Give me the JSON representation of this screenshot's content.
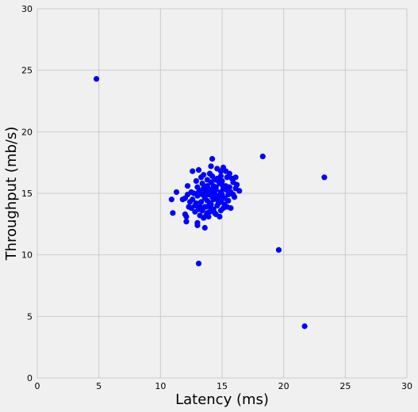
{
  "chart_data": {
    "type": "scatter",
    "title": "",
    "xlabel": "Latency (ms)",
    "ylabel": "Throughput (mb/s)",
    "xlim": [
      0,
      30
    ],
    "ylim": [
      0,
      30
    ],
    "xticks": [
      0,
      5,
      10,
      15,
      20,
      25,
      30
    ],
    "yticks": [
      0,
      5,
      10,
      15,
      20,
      25,
      30
    ],
    "grid": true,
    "legend": "none",
    "background_color": "#f0f0f0",
    "grid_color": "#cbcbcb",
    "marker_color": "#0000ff",
    "series": [
      {
        "points": [
          [
            4.8,
            24.3
          ],
          [
            18.3,
            18.0
          ],
          [
            23.3,
            16.3
          ],
          [
            19.6,
            10.4
          ],
          [
            21.7,
            4.2
          ],
          [
            13.1,
            9.3
          ],
          [
            13.6,
            12.2
          ],
          [
            13.0,
            12.6
          ],
          [
            13.0,
            12.4
          ],
          [
            12.1,
            12.7
          ],
          [
            12.0,
            13.3
          ],
          [
            12.1,
            13.1
          ],
          [
            11.0,
            13.4
          ],
          [
            10.9,
            14.5
          ],
          [
            11.3,
            15.1
          ],
          [
            11.8,
            14.5
          ],
          [
            12.0,
            14.6
          ],
          [
            12.2,
            15.6
          ],
          [
            12.6,
            16.8
          ],
          [
            13.1,
            16.9
          ],
          [
            14.2,
            17.8
          ],
          [
            14.1,
            17.2
          ],
          [
            15.1,
            17.1
          ],
          [
            16.1,
            16.3
          ],
          [
            16.4,
            15.2
          ],
          [
            16.0,
            14.7
          ],
          [
            15.9,
            15.9
          ],
          [
            15.6,
            16.6
          ],
          [
            15.3,
            16.8
          ],
          [
            14.9,
            16.4
          ],
          [
            12.5,
            15.1
          ],
          [
            12.9,
            14.2
          ],
          [
            13.2,
            13.2
          ],
          [
            13.5,
            13.0
          ],
          [
            13.8,
            13.4
          ],
          [
            14.1,
            13.8
          ],
          [
            14.5,
            13.3
          ],
          [
            14.9,
            13.6
          ],
          [
            15.2,
            14.1
          ],
          [
            15.5,
            14.4
          ],
          [
            15.7,
            15.1
          ],
          [
            15.3,
            15.6
          ],
          [
            15.0,
            16.0
          ],
          [
            14.6,
            16.2
          ],
          [
            14.2,
            16.4
          ],
          [
            13.8,
            16.1
          ],
          [
            13.4,
            15.8
          ],
          [
            13.0,
            15.5
          ],
          [
            12.7,
            15.0
          ],
          [
            12.6,
            14.5
          ],
          [
            12.8,
            14.0
          ],
          [
            13.1,
            13.7
          ],
          [
            13.4,
            13.6
          ],
          [
            13.7,
            13.9
          ],
          [
            14.0,
            14.2
          ],
          [
            14.3,
            14.5
          ],
          [
            14.6,
            14.8
          ],
          [
            14.9,
            15.1
          ],
          [
            15.1,
            15.4
          ],
          [
            14.8,
            15.8
          ],
          [
            14.5,
            15.5
          ],
          [
            14.2,
            15.2
          ],
          [
            13.9,
            14.9
          ],
          [
            13.6,
            14.6
          ],
          [
            13.3,
            14.3
          ],
          [
            13.0,
            14.8
          ],
          [
            13.2,
            15.2
          ],
          [
            13.5,
            15.4
          ],
          [
            13.8,
            15.6
          ],
          [
            14.1,
            15.9
          ],
          [
            14.4,
            16.1
          ],
          [
            14.7,
            16.0
          ],
          [
            15.0,
            15.7
          ],
          [
            15.3,
            15.3
          ],
          [
            15.5,
            14.9
          ],
          [
            15.2,
            14.6
          ],
          [
            14.9,
            14.3
          ],
          [
            14.6,
            14.0
          ],
          [
            14.3,
            13.7
          ],
          [
            14.0,
            13.5
          ],
          [
            13.7,
            13.2
          ],
          [
            13.9,
            15.0
          ],
          [
            14.0,
            15.3
          ],
          [
            14.2,
            14.7
          ],
          [
            14.4,
            15.0
          ],
          [
            13.6,
            15.0
          ],
          [
            13.8,
            14.4
          ],
          [
            14.6,
            14.5
          ],
          [
            14.3,
            15.6
          ],
          [
            13.4,
            14.9
          ],
          [
            15.6,
            15.5
          ],
          [
            15.8,
            16.2
          ],
          [
            12.4,
            14.3
          ],
          [
            12.3,
            13.9
          ],
          [
            12.9,
            16.0
          ],
          [
            13.3,
            16.3
          ],
          [
            14.0,
            16.6
          ],
          [
            14.8,
            13.1
          ],
          [
            15.4,
            13.9
          ],
          [
            16.2,
            15.7
          ],
          [
            15.9,
            14.9
          ],
          [
            13.6,
            13.9
          ],
          [
            14.1,
            14.1
          ],
          [
            14.7,
            14.2
          ],
          [
            15.0,
            14.9
          ],
          [
            13.5,
            16.5
          ],
          [
            12.8,
            13.5
          ],
          [
            13.2,
            13.9
          ],
          [
            14.4,
            13.4
          ],
          [
            15.1,
            13.8
          ],
          [
            14.3,
            14.9
          ],
          [
            13.7,
            15.3
          ],
          [
            14.5,
            15.3
          ],
          [
            14.8,
            14.6
          ],
          [
            12.2,
            14.9
          ],
          [
            16.1,
            15.4
          ],
          [
            15.7,
            13.8
          ],
          [
            13.9,
            13.1
          ],
          [
            14.6,
            17.0
          ],
          [
            13.1,
            15.1
          ],
          [
            12.5,
            13.8
          ],
          [
            15.4,
            16.3
          ],
          [
            14.9,
            16.8
          ]
        ]
      }
    ]
  }
}
